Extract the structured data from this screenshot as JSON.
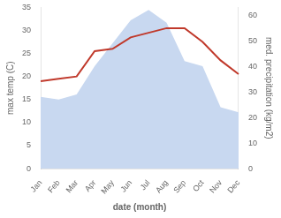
{
  "chart_data": {
    "type": "line",
    "xlabel": "date (month)",
    "ylabel": "max temp (C)",
    "y2label": "med. precipitation (kg/m2)",
    "categories": [
      "Jan",
      "Feb",
      "Mar",
      "Apr",
      "May",
      "Jun",
      "Jul",
      "Aug",
      "Sep",
      "Oct",
      "Nov",
      "Dec"
    ],
    "series": [
      {
        "type": "area",
        "color": "#c8d8f0",
        "axis": "y2",
        "values": [
          28,
          27,
          29,
          40,
          49,
          58,
          62,
          57,
          42,
          40,
          24,
          22
        ]
      },
      {
        "type": "line",
        "color": "#c0392b",
        "values": [
          19,
          19.5,
          20,
          25.5,
          26,
          28.5,
          29.5,
          30.5,
          30.5,
          27.5,
          23.5,
          20.5
        ]
      }
    ],
    "ylim": [
      0,
      35
    ],
    "yticks": [
      0,
      5,
      10,
      15,
      20,
      25,
      30,
      35
    ],
    "y2lim": [
      0,
      63
    ],
    "y2ticks": [
      0,
      10,
      20,
      30,
      40,
      50,
      60
    ],
    "grid": false
  }
}
